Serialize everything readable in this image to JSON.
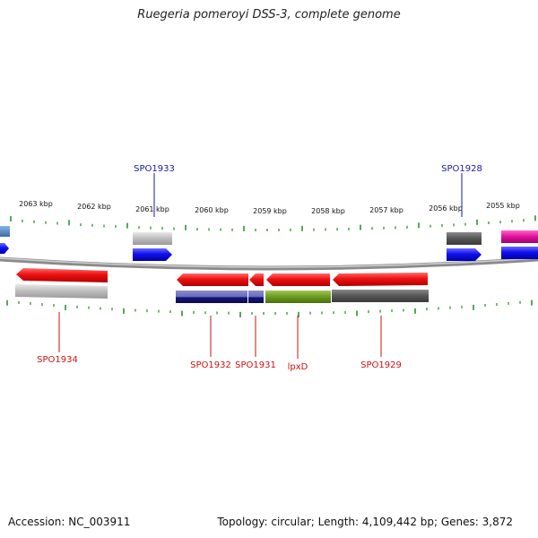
{
  "title": "Ruegeria pomeroyi DSS-3, complete genome",
  "footer": {
    "accession": "Accession: NC_003911",
    "summary": "Topology: circular; Length: 4,109,442 bp; Genes: 3,872"
  },
  "colors": {
    "backbone": "#8a8a8a",
    "tick": "#1f8a1f",
    "forward_label": "#1a1aa0",
    "reverse_label": "#cc1111",
    "cds_red": "#ee1111",
    "cds_blue": "#1111ee",
    "cds_gray": "#b8b8b8",
    "cds_darkgray": "#555555",
    "cds_navy": "#15157a",
    "cds_lightnavy": "#7575c0",
    "cds_olive": "#6a9a1f",
    "cds_magenta": "#e0119a",
    "cds_steel": "#4a7fbf"
  },
  "kbp_labels": [
    "2063 kbp",
    "2062 kbp",
    "2061 kbp",
    "2060 kbp",
    "2059 kbp",
    "2058 kbp",
    "2057 kbp",
    "2056 kbp",
    "2055 kbp"
  ],
  "forward_genes": [
    {
      "name": "SPO1933",
      "position_kbp": 2061.0
    },
    {
      "name": "SPO1928",
      "position_kbp": 2055.7
    }
  ],
  "reverse_genes": [
    {
      "name": "SPO1934",
      "position_kbp": 2062.6
    },
    {
      "name": "SPO1932",
      "position_kbp": 2059.8
    },
    {
      "name": "SPO1931",
      "position_kbp": 2059.3
    },
    {
      "name": "lpxD",
      "position_kbp": 2058.7
    },
    {
      "name": "SPO1929",
      "position_kbp": 2057.2
    }
  ]
}
